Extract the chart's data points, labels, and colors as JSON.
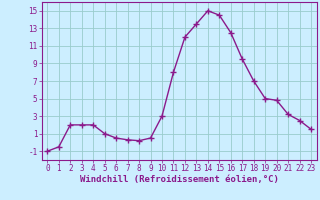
{
  "x": [
    0,
    1,
    2,
    3,
    4,
    5,
    6,
    7,
    8,
    9,
    10,
    11,
    12,
    13,
    14,
    15,
    16,
    17,
    18,
    19,
    20,
    21,
    22,
    23
  ],
  "y": [
    -1,
    -0.5,
    2,
    2,
    2,
    1,
    0.5,
    0.3,
    0.2,
    0.5,
    3,
    8,
    12,
    13.5,
    15,
    14.5,
    12.5,
    9.5,
    7,
    5,
    4.8,
    3.2,
    2.5,
    1.5
  ],
  "line_color": "#8b1a8b",
  "marker": "+",
  "markersize": 4,
  "linewidth": 1.0,
  "background_color": "#cceeff",
  "grid_color": "#99cccc",
  "xlabel": "Windchill (Refroidissement éolien,°C)",
  "xlabel_fontsize": 6.5,
  "xlim": [
    -0.5,
    23.5
  ],
  "ylim": [
    -2,
    16
  ],
  "yticks": [
    -1,
    1,
    3,
    5,
    7,
    9,
    11,
    13,
    15
  ],
  "xticks": [
    0,
    1,
    2,
    3,
    4,
    5,
    6,
    7,
    8,
    9,
    10,
    11,
    12,
    13,
    14,
    15,
    16,
    17,
    18,
    19,
    20,
    21,
    22,
    23
  ],
  "tick_fontsize": 5.5
}
